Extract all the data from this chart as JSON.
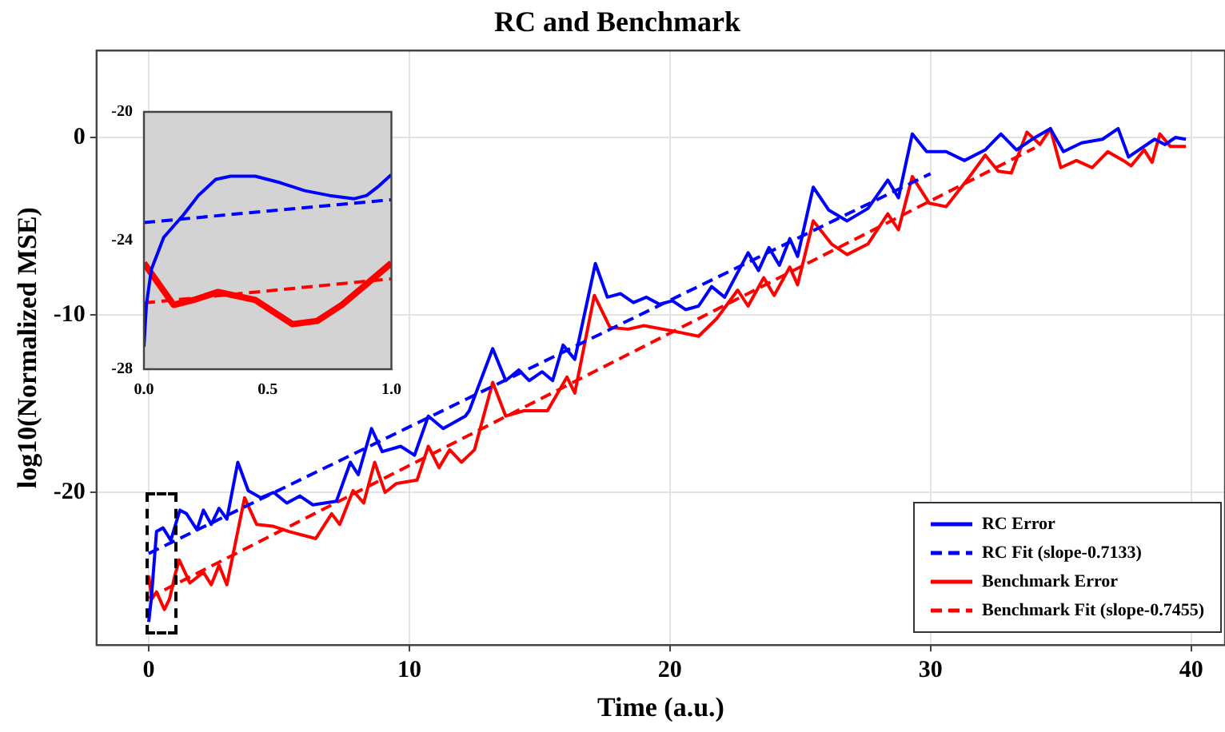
{
  "chart_data": [
    {
      "type": "line",
      "title": "RC and Benchmark",
      "xlabel": "Time (a.u.)",
      "ylabel": "log10(Normalized MSE)",
      "xlim": [
        -2,
        41.3
      ],
      "ylim": [
        -28.6,
        4.9
      ],
      "xticks": [
        0,
        10,
        20,
        30,
        40
      ],
      "yticks": [
        -20,
        -10,
        0
      ],
      "grid": true,
      "legend": "bottom right",
      "marker": "none",
      "series": [
        {
          "name": "RC Error",
          "color": "#0000ff",
          "line_style": "solid",
          "x": [
            0,
            0.1,
            0.3,
            0.55,
            0.85,
            1.0,
            1.2,
            1.45,
            1.85,
            2.1,
            2.4,
            2.7,
            3.0,
            3.42,
            3.82,
            4.3,
            4.8,
            5.3,
            5.8,
            6.3,
            7.2,
            7.74,
            8.04,
            8.55,
            8.96,
            9.67,
            10.2,
            10.73,
            11.3,
            12.15,
            12.3,
            13.2,
            13.7,
            14.2,
            14.6,
            15.1,
            15.5,
            15.9,
            16.35,
            17.14,
            17.6,
            18.1,
            18.6,
            19.1,
            19.6,
            20.1,
            20.6,
            21.1,
            21.6,
            22.1,
            23.0,
            23.4,
            23.8,
            24.2,
            24.6,
            24.9,
            25.5,
            26.1,
            26.8,
            27.6,
            28.36,
            28.77,
            29.3,
            29.85,
            30.6,
            31.3,
            32.1,
            32.7,
            33.3,
            33.9,
            34.6,
            35.1,
            35.8,
            36.6,
            37.2,
            37.6,
            38.6,
            39.0,
            39.4,
            39.8
          ],
          "values": [
            -27.3,
            -26,
            -22.2,
            -22,
            -22.7,
            -21.95,
            -21,
            -21.2,
            -22.1,
            -21,
            -21.8,
            -20.9,
            -21.5,
            -18.3,
            -19.9,
            -20.3,
            -20.0,
            -20.6,
            -20.2,
            -20.7,
            -20.5,
            -18.3,
            -19.0,
            -16.4,
            -17.7,
            -17.4,
            -17.9,
            -15.7,
            -16.4,
            -15.7,
            -15.4,
            -11.9,
            -13.7,
            -13.1,
            -13.7,
            -13.2,
            -13.7,
            -11.7,
            -12.5,
            -7.1,
            -9.0,
            -8.8,
            -9.3,
            -9.0,
            -9.4,
            -9.2,
            -9.7,
            -9.5,
            -8.4,
            -9.0,
            -6.5,
            -7.5,
            -6.2,
            -7.2,
            -5.7,
            -6.7,
            -2.8,
            -4.1,
            -4.7,
            -4.0,
            -2.4,
            -3.4,
            0.2,
            -0.8,
            -0.8,
            -1.3,
            -0.7,
            0.2,
            -0.7,
            -0.1,
            0.5,
            -0.8,
            -0.3,
            -0.1,
            0.5,
            -1.1,
            -0.1,
            -0.4,
            0.0,
            -0.1
          ]
        },
        {
          "name": "RC Fit (slope-0.7133)",
          "color": "#0000ff",
          "line_style": "dashed",
          "x": [
            0,
            30
          ],
          "values": [
            -23.44,
            -2.04
          ]
        },
        {
          "name": "Benchmark Error",
          "color": "#ff0000",
          "line_style": "solid",
          "x": [
            0,
            0.12,
            0.3,
            0.6,
            0.8,
            1.0,
            1.17,
            1.58,
            2.1,
            2.4,
            2.7,
            3.0,
            3.68,
            4.14,
            4.76,
            5.38,
            6.41,
            7.02,
            7.33,
            7.84,
            8.25,
            8.67,
            9.07,
            9.5,
            10.3,
            10.73,
            11.14,
            11.55,
            12.0,
            12.5,
            13.2,
            13.7,
            14.4,
            15.3,
            16.05,
            16.35,
            17.1,
            17.7,
            18.4,
            19.0,
            20.1,
            21.1,
            21.8,
            22.6,
            23.0,
            23.6,
            24.0,
            24.6,
            24.9,
            25.5,
            26.2,
            26.8,
            27.6,
            28.36,
            28.77,
            29.3,
            29.95,
            30.6,
            31.4,
            32.1,
            32.6,
            33.1,
            33.7,
            34.2,
            34.6,
            35.0,
            35.6,
            36.2,
            36.8,
            37.4,
            37.7,
            38.2,
            38.5,
            38.8,
            39.2,
            39.8
          ],
          "values": [
            -24.7,
            -26.0,
            -25.6,
            -26.6,
            -26.0,
            -24.7,
            -23.8,
            -25.1,
            -24.5,
            -25.2,
            -24.1,
            -25.2,
            -20.3,
            -21.8,
            -21.9,
            -22.2,
            -22.6,
            -21.2,
            -21.8,
            -19.9,
            -20.6,
            -18.3,
            -20.0,
            -19.5,
            -19.3,
            -17.4,
            -18.6,
            -17.6,
            -18.3,
            -17.6,
            -13.8,
            -15.7,
            -15.4,
            -15.4,
            -13.5,
            -14.4,
            -8.9,
            -10.7,
            -10.8,
            -10.6,
            -10.9,
            -11.2,
            -10.2,
            -8.6,
            -9.5,
            -7.9,
            -8.9,
            -7.3,
            -8.3,
            -4.7,
            -6.0,
            -6.6,
            -6.0,
            -4.3,
            -5.2,
            -2.2,
            -3.7,
            -3.9,
            -2.4,
            -1.0,
            -1.9,
            -2.0,
            0.3,
            -0.4,
            0.5,
            -1.7,
            -1.3,
            -1.7,
            -0.8,
            -1.3,
            -1.6,
            -0.7,
            -1.4,
            0.2,
            -0.5,
            -0.5
          ]
        },
        {
          "name": "Benchmark Fit (slope-0.7455)",
          "color": "#ff0000",
          "line_style": "dashed",
          "x": [
            0,
            34
          ],
          "values": [
            -25.94,
            -0.59
          ]
        }
      ]
    },
    {
      "type": "line",
      "xlim": [
        0,
        1
      ],
      "ylim": [
        -28,
        -20
      ],
      "xticks": [
        {
          "value": 0,
          "label": "0.0"
        },
        {
          "value": 0.5,
          "label": "0.5"
        },
        {
          "value": 1,
          "label": "1.0"
        }
      ],
      "yticks": [
        -20,
        -24,
        -28
      ],
      "grid": false,
      "legend": false,
      "marker": "none",
      "series": [
        {
          "color": "#0000ff",
          "line_style": "solid",
          "x": [
            0,
            0.01,
            0.03,
            0.08,
            0.16,
            0.22,
            0.29,
            0.35,
            0.45,
            0.55,
            0.65,
            0.75,
            0.85,
            0.9,
            0.95,
            1.0
          ],
          "values": [
            -27.3,
            -26,
            -24.9,
            -23.9,
            -23.2,
            -22.6,
            -22.1,
            -22.0,
            -22.0,
            -22.2,
            -22.45,
            -22.6,
            -22.7,
            -22.6,
            -22.3,
            -21.95
          ]
        },
        {
          "color": "#0000ff",
          "line_style": "dashed",
          "x": [
            0,
            1
          ],
          "values": [
            -23.44,
            -22.73
          ]
        },
        {
          "color": "#ff0000",
          "line_style": "solid",
          "x": [
            0,
            0.12,
            0.2,
            0.3,
            0.45,
            0.6,
            0.7,
            0.8,
            0.9,
            1.0
          ],
          "values": [
            -24.7,
            -26.0,
            -25.85,
            -25.6,
            -25.85,
            -26.6,
            -26.5,
            -26.0,
            -25.35,
            -24.7
          ]
        },
        {
          "color": "#ff0000",
          "line_style": "dashed",
          "x": [
            0,
            1
          ],
          "values": [
            -25.94,
            -25.19
          ]
        }
      ]
    }
  ]
}
